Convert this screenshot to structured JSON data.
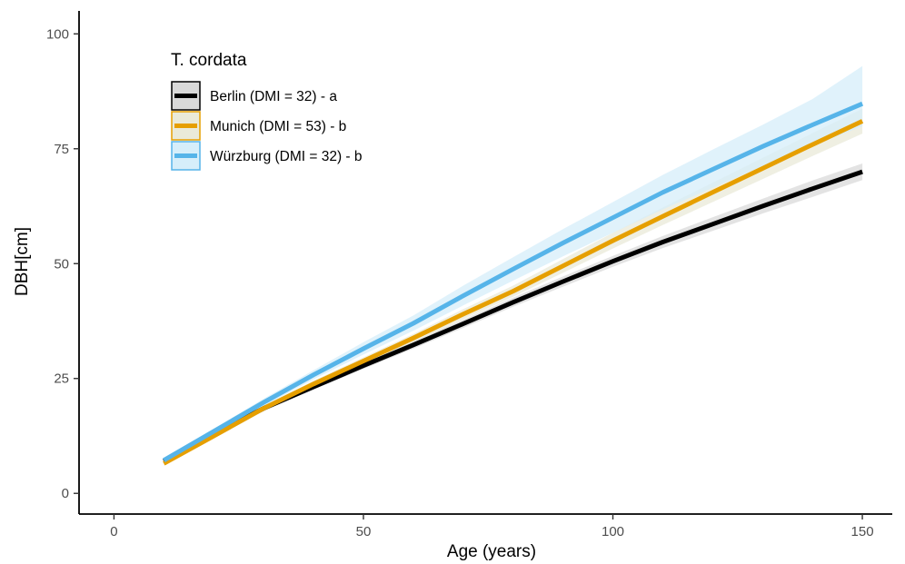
{
  "chart_data": {
    "type": "line",
    "title": "",
    "xlabel": "Age (years)",
    "ylabel": "DBH[cm]",
    "xlim": [
      -7,
      156
    ],
    "ylim": [
      -4.5,
      105
    ],
    "xticks": [
      0,
      50,
      100,
      150
    ],
    "yticks": [
      0,
      25,
      50,
      75,
      100
    ],
    "x_tick_labels": [
      "0",
      "50",
      "100",
      "150"
    ],
    "y_tick_labels": [
      "0",
      "25",
      "50",
      "75",
      "100"
    ],
    "grid": false,
    "legend": {
      "title": "T. cordata",
      "placement": "top-left"
    },
    "x": [
      10,
      20,
      30,
      40,
      50,
      60,
      70,
      80,
      90,
      100,
      110,
      120,
      130,
      140,
      150
    ],
    "series": [
      {
        "name": "Berlin (DMI = 32) - a",
        "color": "#000000",
        "band_color": "#d9d9d9",
        "values": [
          7,
          13,
          18.5,
          23.2,
          27.8,
          32.3,
          36.9,
          41.6,
          46.1,
          50.5,
          54.7,
          58.6,
          62.5,
          66.3,
          70
        ],
        "lower": [
          6.6,
          12.5,
          18,
          22.6,
          27.1,
          31.5,
          36,
          40.6,
          45,
          49.3,
          53.4,
          57.1,
          60.9,
          64.5,
          68.2
        ],
        "upper": [
          7.4,
          13.5,
          19,
          23.8,
          28.5,
          33.1,
          37.8,
          42.6,
          47.2,
          51.7,
          56,
          60.1,
          64.1,
          68.1,
          71.8
        ]
      },
      {
        "name": "Munich (DMI = 53) - b",
        "color": "#e69f00",
        "band_color": "#eaead8",
        "values": [
          6.5,
          12.5,
          18.5,
          23.8,
          28.8,
          33.8,
          39,
          44,
          49.5,
          55,
          60.3,
          65.5,
          70.7,
          75.9,
          81
        ],
        "lower": [
          6.1,
          12,
          17.9,
          23.1,
          28,
          32.9,
          37.9,
          42.8,
          48,
          53.3,
          58.4,
          63.4,
          68.4,
          73.4,
          78.3
        ],
        "upper": [
          6.9,
          13,
          19.1,
          24.5,
          29.6,
          34.7,
          40.1,
          45.2,
          51,
          56.7,
          62.2,
          67.6,
          73,
          78.4,
          83.7
        ]
      },
      {
        "name": "Würzburg (DMI = 32) - b",
        "color": "#56b4e9",
        "band_color": "#d6eefa",
        "values": [
          7.2,
          13.5,
          19.8,
          25.8,
          31.5,
          37,
          43,
          48.8,
          54.5,
          60,
          65.5,
          70.5,
          75.5,
          80.2,
          84.8
        ],
        "lower": [
          6.8,
          12.9,
          19,
          24.8,
          30.2,
          35.4,
          40.9,
          46.3,
          51.6,
          56.7,
          61.8,
          66.5,
          71.2,
          75.6,
          79.9
        ],
        "upper": [
          7.6,
          14.1,
          20.6,
          26.8,
          32.9,
          38.7,
          45.2,
          51.4,
          57.5,
          63.4,
          69.3,
          74.8,
          80.2,
          85.8,
          93
        ]
      }
    ]
  }
}
